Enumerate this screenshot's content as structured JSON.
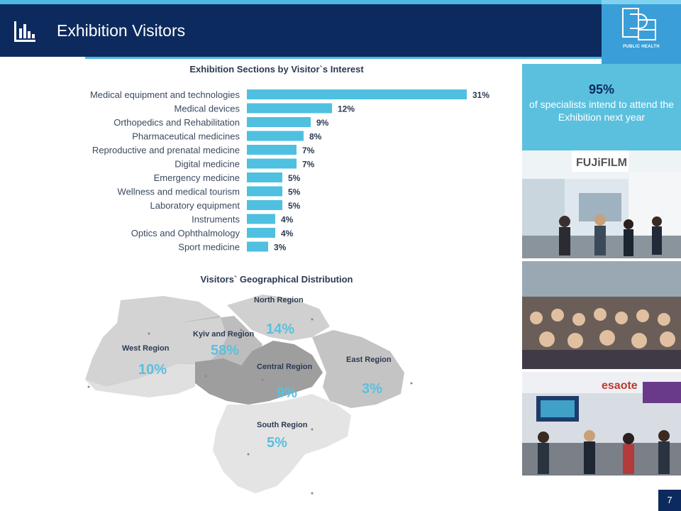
{
  "header": {
    "title": "Exhibition Visitors",
    "logo_text": "PUBLIC HEALTH"
  },
  "stat": {
    "value": "95%",
    "text": "of specialists intend to attend the Exhibition next year"
  },
  "page_number": "7",
  "colors": {
    "navy": "#0d2a5e",
    "accent": "#5bc0de",
    "bar": "#4fc0e0"
  },
  "chart_data": [
    {
      "type": "bar",
      "orientation": "horizontal",
      "title": "Exhibition Sections by Visitor`s Interest",
      "categories": [
        "Medical equipment and technologies",
        "Medical devices",
        "Orthopedics and Rehabilitation",
        "Pharmaceutical medicines",
        "Reproductive and prenatal medicine",
        "Digital medicine",
        "Emergency medicine",
        "Wellness and medical tourism",
        "Laboratory equipment",
        "Instruments",
        "Optics and Ophthalmology",
        "Sport medicine"
      ],
      "values": [
        31,
        12,
        9,
        8,
        7,
        7,
        5,
        5,
        5,
        4,
        4,
        3
      ],
      "value_labels": [
        "31%",
        "12%",
        "9%",
        "8%",
        "7%",
        "7%",
        "5%",
        "5%",
        "5%",
        "4%",
        "4%",
        "3%"
      ],
      "unit": "%"
    }
  ],
  "map": {
    "title": "Visitors` Geographical Distribution",
    "regions": [
      {
        "name": "North Region",
        "pct": "14%"
      },
      {
        "name": "Kyiv and Region",
        "pct": "58%"
      },
      {
        "name": "West Region",
        "pct": "10%"
      },
      {
        "name": "Central Region",
        "pct": "9%"
      },
      {
        "name": "East Region",
        "pct": "3%"
      },
      {
        "name": "South Region",
        "pct": "5%"
      }
    ]
  },
  "photos": [
    "fujifilm-booth-photo",
    "audience-photo",
    "esaote-booth-photo"
  ]
}
